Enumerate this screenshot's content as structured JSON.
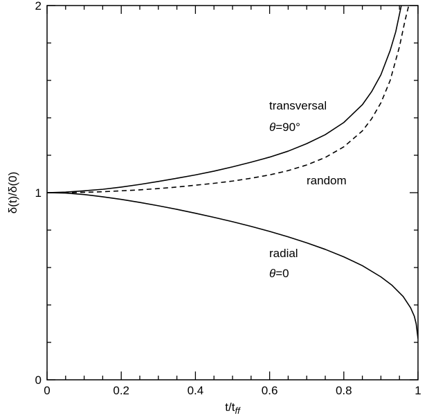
{
  "chart_data": {
    "type": "line",
    "xlabel": "t/t",
    "xlabel_subscript": "ff",
    "ylabel": "δ(t)/δ(0)",
    "xlim": [
      0,
      1
    ],
    "ylim": [
      0,
      2
    ],
    "x_ticks": [
      0,
      0.2,
      0.4,
      0.6,
      0.8,
      1
    ],
    "x_tick_labels": [
      "0",
      "0.2",
      "0.4",
      "0.6",
      "0.8",
      "1"
    ],
    "y_ticks": [
      0,
      1,
      2
    ],
    "y_tick_labels": [
      "0",
      "1",
      "2"
    ],
    "grid": false,
    "series": [
      {
        "name": "transversal",
        "style": "solid",
        "color": "#000000",
        "x": [
          0,
          0.05,
          0.1,
          0.15,
          0.2,
          0.25,
          0.3,
          0.35,
          0.4,
          0.45,
          0.5,
          0.55,
          0.6,
          0.65,
          0.7,
          0.75,
          0.8,
          0.85,
          0.875,
          0.9,
          0.925,
          0.94,
          0.955
        ],
        "y": [
          1.0,
          1.003,
          1.01,
          1.018,
          1.03,
          1.044,
          1.06,
          1.077,
          1.095,
          1.115,
          1.138,
          1.163,
          1.19,
          1.222,
          1.262,
          1.31,
          1.375,
          1.47,
          1.54,
          1.63,
          1.76,
          1.86,
          2.0
        ]
      },
      {
        "name": "random",
        "style": "dashed",
        "color": "#000000",
        "x": [
          0,
          0.05,
          0.1,
          0.15,
          0.2,
          0.25,
          0.3,
          0.35,
          0.4,
          0.45,
          0.5,
          0.55,
          0.6,
          0.65,
          0.7,
          0.75,
          0.8,
          0.85,
          0.875,
          0.9,
          0.925,
          0.95,
          0.965,
          0.975
        ],
        "y": [
          1.0,
          1.0,
          1.002,
          1.005,
          1.01,
          1.015,
          1.022,
          1.03,
          1.04,
          1.05,
          1.062,
          1.077,
          1.095,
          1.118,
          1.148,
          1.188,
          1.245,
          1.33,
          1.395,
          1.48,
          1.6,
          1.78,
          1.92,
          2.0
        ]
      },
      {
        "name": "radial",
        "style": "solid",
        "color": "#000000",
        "x": [
          0,
          0.05,
          0.1,
          0.15,
          0.2,
          0.25,
          0.3,
          0.35,
          0.4,
          0.45,
          0.5,
          0.55,
          0.6,
          0.65,
          0.7,
          0.75,
          0.8,
          0.85,
          0.9,
          0.93,
          0.96,
          0.98,
          0.99,
          0.995,
          1.0
        ],
        "y": [
          1.0,
          0.998,
          0.99,
          0.978,
          0.964,
          0.948,
          0.93,
          0.911,
          0.89,
          0.868,
          0.845,
          0.82,
          0.793,
          0.764,
          0.732,
          0.697,
          0.657,
          0.61,
          0.55,
          0.505,
          0.445,
          0.385,
          0.34,
          0.3,
          0.22
        ]
      }
    ],
    "annotations": [
      {
        "line1": "transversal",
        "line2_symbol": "θ",
        "line2_text": "=90°"
      },
      {
        "line1": "random"
      },
      {
        "line1": "radial",
        "line2_symbol": "θ",
        "line2_text": "=0"
      }
    ]
  }
}
